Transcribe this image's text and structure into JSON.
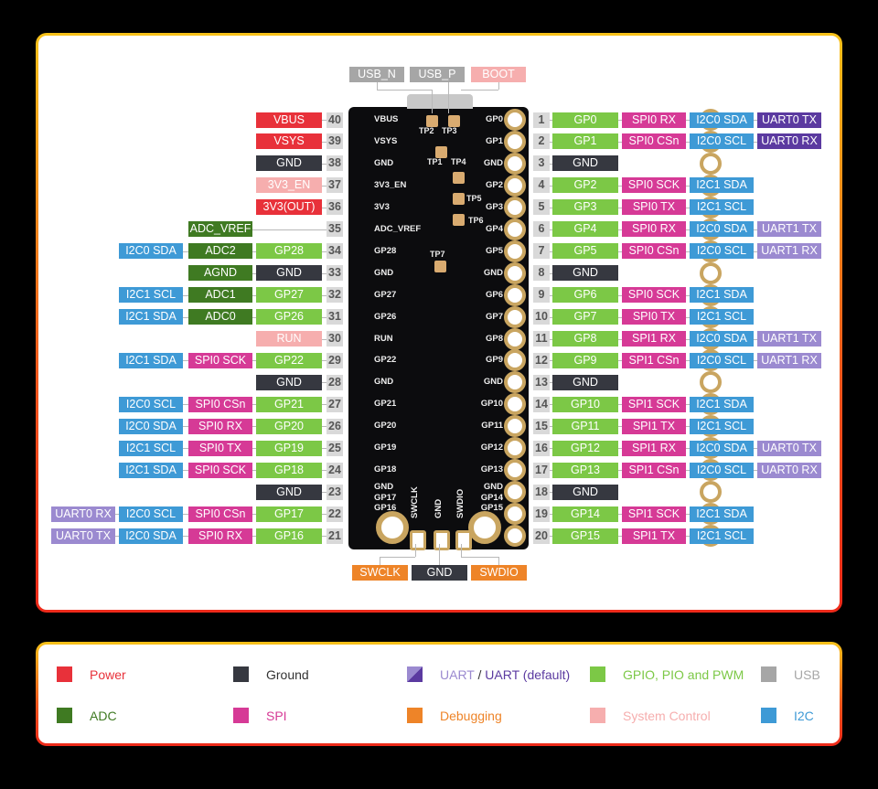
{
  "colors": {
    "power": "#e8313a",
    "ground": "#363840",
    "uart": "#9b8ad0",
    "uart_default": "#5b3aa0",
    "gpio": "#7cc846",
    "usb": "#a6a6a6",
    "adc": "#3f7a22",
    "spi": "#d63a96",
    "debug": "#ee8428",
    "sysctl": "#f6aeae",
    "i2c": "#3e9ad6"
  },
  "top_labels": [
    {
      "text": "USB_N",
      "type": "usb"
    },
    {
      "text": "USB_P",
      "type": "usb"
    },
    {
      "text": "BOOT",
      "type": "sysctl"
    }
  ],
  "bottom_labels": [
    {
      "text": "SWCLK",
      "type": "debug"
    },
    {
      "text": "GND",
      "type": "ground"
    },
    {
      "text": "SWDIO",
      "type": "debug"
    }
  ],
  "bottom_silk": [
    "SWCLK",
    "GND",
    "SWDIO"
  ],
  "test_points": [
    "TP1",
    "TP2",
    "TP3",
    "TP4",
    "TP5",
    "TP6",
    "TP7"
  ],
  "left_pins": [
    {
      "pin": "40",
      "silk": "VBUS",
      "labels": [
        {
          "text": "VBUS",
          "type": "power"
        }
      ]
    },
    {
      "pin": "39",
      "silk": "VSYS",
      "labels": [
        {
          "text": "VSYS",
          "type": "power"
        }
      ]
    },
    {
      "pin": "38",
      "silk": "GND",
      "labels": [
        {
          "text": "GND",
          "type": "ground"
        }
      ]
    },
    {
      "pin": "37",
      "silk": "3V3_EN",
      "labels": [
        {
          "text": "3V3_EN",
          "type": "sysctl"
        }
      ]
    },
    {
      "pin": "36",
      "silk": "3V3",
      "labels": [
        {
          "text": "3V3(OUT)",
          "type": "power"
        }
      ]
    },
    {
      "pin": "35",
      "silk": "ADC_VREF",
      "labels": [
        null,
        {
          "text": "ADC_VREF",
          "type": "adc"
        }
      ]
    },
    {
      "pin": "34",
      "silk": "GP28",
      "labels": [
        {
          "text": "GP28",
          "type": "gpio"
        },
        {
          "text": "ADC2",
          "type": "adc"
        },
        {
          "text": "I2C0 SDA",
          "type": "i2c"
        }
      ]
    },
    {
      "pin": "33",
      "silk": "GND",
      "labels": [
        {
          "text": "GND",
          "type": "ground"
        },
        {
          "text": "AGND",
          "type": "adc"
        }
      ]
    },
    {
      "pin": "32",
      "silk": "GP27",
      "labels": [
        {
          "text": "GP27",
          "type": "gpio"
        },
        {
          "text": "ADC1",
          "type": "adc"
        },
        {
          "text": "I2C1 SCL",
          "type": "i2c"
        }
      ]
    },
    {
      "pin": "31",
      "silk": "GP26",
      "labels": [
        {
          "text": "GP26",
          "type": "gpio"
        },
        {
          "text": "ADC0",
          "type": "adc"
        },
        {
          "text": "I2C1 SDA",
          "type": "i2c"
        }
      ]
    },
    {
      "pin": "30",
      "silk": "RUN",
      "labels": [
        {
          "text": "RUN",
          "type": "sysctl"
        }
      ]
    },
    {
      "pin": "29",
      "silk": "GP22",
      "labels": [
        {
          "text": "GP22",
          "type": "gpio"
        },
        {
          "text": "SPI0 SCK",
          "type": "spi"
        },
        {
          "text": "I2C1 SDA",
          "type": "i2c"
        }
      ]
    },
    {
      "pin": "28",
      "silk": "GND",
      "labels": [
        {
          "text": "GND",
          "type": "ground"
        }
      ]
    },
    {
      "pin": "27",
      "silk": "GP21",
      "labels": [
        {
          "text": "GP21",
          "type": "gpio"
        },
        {
          "text": "SPI0 CSn",
          "type": "spi"
        },
        {
          "text": "I2C0 SCL",
          "type": "i2c"
        }
      ]
    },
    {
      "pin": "26",
      "silk": "GP20",
      "labels": [
        {
          "text": "GP20",
          "type": "gpio"
        },
        {
          "text": "SPI0 RX",
          "type": "spi"
        },
        {
          "text": "I2C0 SDA",
          "type": "i2c"
        }
      ]
    },
    {
      "pin": "25",
      "silk": "GP19",
      "labels": [
        {
          "text": "GP19",
          "type": "gpio"
        },
        {
          "text": "SPI0 TX",
          "type": "spi"
        },
        {
          "text": "I2C1 SCL",
          "type": "i2c"
        }
      ]
    },
    {
      "pin": "24",
      "silk": "GP18",
      "labels": [
        {
          "text": "GP18",
          "type": "gpio"
        },
        {
          "text": "SPI0 SCK",
          "type": "spi"
        },
        {
          "text": "I2C1 SDA",
          "type": "i2c"
        }
      ]
    },
    {
      "pin": "23",
      "silk": "GND",
      "labels": [
        {
          "text": "GND",
          "type": "ground"
        }
      ]
    },
    {
      "pin": "22",
      "silk": "GP17",
      "labels": [
        {
          "text": "GP17",
          "type": "gpio"
        },
        {
          "text": "SPI0 CSn",
          "type": "spi"
        },
        {
          "text": "I2C0 SCL",
          "type": "i2c"
        },
        {
          "text": "UART0 RX",
          "type": "uart"
        }
      ]
    },
    {
      "pin": "21",
      "silk": "GP16",
      "labels": [
        {
          "text": "GP16",
          "type": "gpio"
        },
        {
          "text": "SPI0 RX",
          "type": "spi"
        },
        {
          "text": "I2C0 SDA",
          "type": "i2c"
        },
        {
          "text": "UART0 TX",
          "type": "uart"
        }
      ]
    }
  ],
  "right_pins": [
    {
      "pin": "1",
      "silk": "GP0",
      "labels": [
        {
          "text": "GP0",
          "type": "gpio"
        },
        {
          "text": "SPI0 RX",
          "type": "spi"
        },
        {
          "text": "I2C0 SDA",
          "type": "i2c"
        },
        {
          "text": "UART0 TX",
          "type": "uart_default"
        }
      ]
    },
    {
      "pin": "2",
      "silk": "GP1",
      "labels": [
        {
          "text": "GP1",
          "type": "gpio"
        },
        {
          "text": "SPI0 CSn",
          "type": "spi"
        },
        {
          "text": "I2C0 SCL",
          "type": "i2c"
        },
        {
          "text": "UART0 RX",
          "type": "uart_default"
        }
      ]
    },
    {
      "pin": "3",
      "silk": "GND",
      "labels": [
        {
          "text": "GND",
          "type": "ground"
        }
      ]
    },
    {
      "pin": "4",
      "silk": "GP2",
      "labels": [
        {
          "text": "GP2",
          "type": "gpio"
        },
        {
          "text": "SPI0 SCK",
          "type": "spi"
        },
        {
          "text": "I2C1 SDA",
          "type": "i2c"
        }
      ]
    },
    {
      "pin": "5",
      "silk": "GP3",
      "labels": [
        {
          "text": "GP3",
          "type": "gpio"
        },
        {
          "text": "SPI0 TX",
          "type": "spi"
        },
        {
          "text": "I2C1 SCL",
          "type": "i2c"
        }
      ]
    },
    {
      "pin": "6",
      "silk": "GP4",
      "labels": [
        {
          "text": "GP4",
          "type": "gpio"
        },
        {
          "text": "SPI0 RX",
          "type": "spi"
        },
        {
          "text": "I2C0 SDA",
          "type": "i2c"
        },
        {
          "text": "UART1 TX",
          "type": "uart"
        }
      ]
    },
    {
      "pin": "7",
      "silk": "GP5",
      "labels": [
        {
          "text": "GP5",
          "type": "gpio"
        },
        {
          "text": "SPI0 CSn",
          "type": "spi"
        },
        {
          "text": "I2C0 SCL",
          "type": "i2c"
        },
        {
          "text": "UART1 RX",
          "type": "uart"
        }
      ]
    },
    {
      "pin": "8",
      "silk": "GND",
      "labels": [
        {
          "text": "GND",
          "type": "ground"
        }
      ]
    },
    {
      "pin": "9",
      "silk": "GP6",
      "labels": [
        {
          "text": "GP6",
          "type": "gpio"
        },
        {
          "text": "SPI0 SCK",
          "type": "spi"
        },
        {
          "text": "I2C1 SDA",
          "type": "i2c"
        }
      ]
    },
    {
      "pin": "10",
      "silk": "GP7",
      "labels": [
        {
          "text": "GP7",
          "type": "gpio"
        },
        {
          "text": "SPI0 TX",
          "type": "spi"
        },
        {
          "text": "I2C1 SCL",
          "type": "i2c"
        }
      ]
    },
    {
      "pin": "11",
      "silk": "GP8",
      "labels": [
        {
          "text": "GP8",
          "type": "gpio"
        },
        {
          "text": "SPI1 RX",
          "type": "spi"
        },
        {
          "text": "I2C0 SDA",
          "type": "i2c"
        },
        {
          "text": "UART1 TX",
          "type": "uart"
        }
      ]
    },
    {
      "pin": "12",
      "silk": "GP9",
      "labels": [
        {
          "text": "GP9",
          "type": "gpio"
        },
        {
          "text": "SPI1 CSn",
          "type": "spi"
        },
        {
          "text": "I2C0 SCL",
          "type": "i2c"
        },
        {
          "text": "UART1 RX",
          "type": "uart"
        }
      ]
    },
    {
      "pin": "13",
      "silk": "GND",
      "labels": [
        {
          "text": "GND",
          "type": "ground"
        }
      ]
    },
    {
      "pin": "14",
      "silk": "GP10",
      "labels": [
        {
          "text": "GP10",
          "type": "gpio"
        },
        {
          "text": "SPI1 SCK",
          "type": "spi"
        },
        {
          "text": "I2C1 SDA",
          "type": "i2c"
        }
      ]
    },
    {
      "pin": "15",
      "silk": "GP11",
      "labels": [
        {
          "text": "GP11",
          "type": "gpio"
        },
        {
          "text": "SPI1 TX",
          "type": "spi"
        },
        {
          "text": "I2C1 SCL",
          "type": "i2c"
        }
      ]
    },
    {
      "pin": "16",
      "silk": "GP12",
      "labels": [
        {
          "text": "GP12",
          "type": "gpio"
        },
        {
          "text": "SPI1 RX",
          "type": "spi"
        },
        {
          "text": "I2C0 SDA",
          "type": "i2c"
        },
        {
          "text": "UART0 TX",
          "type": "uart"
        }
      ]
    },
    {
      "pin": "17",
      "silk": "GP13",
      "labels": [
        {
          "text": "GP13",
          "type": "gpio"
        },
        {
          "text": "SPI1 CSn",
          "type": "spi"
        },
        {
          "text": "I2C0 SCL",
          "type": "i2c"
        },
        {
          "text": "UART0 RX",
          "type": "uart"
        }
      ]
    },
    {
      "pin": "18",
      "silk": "GND",
      "labels": [
        {
          "text": "GND",
          "type": "ground"
        }
      ]
    },
    {
      "pin": "19",
      "silk": "GP14",
      "labels": [
        {
          "text": "GP14",
          "type": "gpio"
        },
        {
          "text": "SPI1 SCK",
          "type": "spi"
        },
        {
          "text": "I2C1 SDA",
          "type": "i2c"
        }
      ]
    },
    {
      "pin": "20",
      "silk": "GP15",
      "labels": [
        {
          "text": "GP15",
          "type": "gpio"
        },
        {
          "text": "SPI1 TX",
          "type": "spi"
        },
        {
          "text": "I2C1 SCL",
          "type": "i2c"
        }
      ]
    }
  ],
  "legend": [
    {
      "label": "Power",
      "type": "power"
    },
    {
      "label": "Ground",
      "type": "ground"
    },
    {
      "label": "UART",
      "label2": "UART (default)",
      "sep": " / ",
      "type": "uart"
    },
    {
      "label": "GPIO, PIO and PWM",
      "type": "gpio"
    },
    {
      "label": "USB",
      "type": "usb"
    },
    {
      "label": "ADC",
      "type": "adc"
    },
    {
      "label": "SPI",
      "type": "spi"
    },
    {
      "label": "Debugging",
      "type": "debug"
    },
    {
      "label": "System Control",
      "type": "sysctl"
    },
    {
      "label": "I2C",
      "type": "i2c"
    }
  ]
}
